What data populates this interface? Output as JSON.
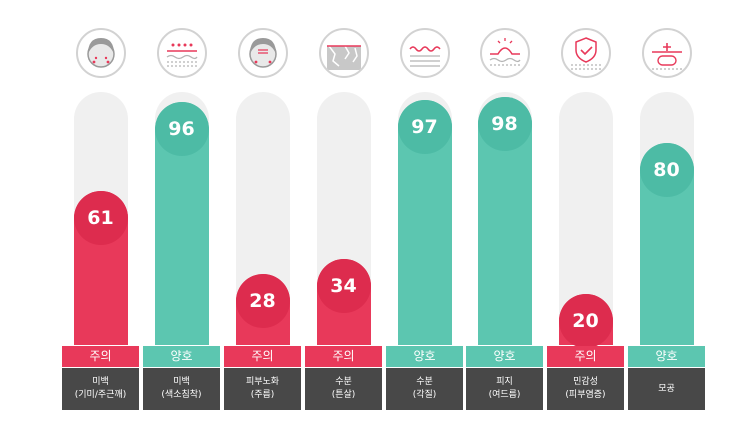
{
  "chart_data": {
    "type": "bar",
    "ylim": [
      0,
      100
    ],
    "colors": {
      "caution": "#e8395a",
      "good": "#5cc6b0",
      "track": "#f0f0f0",
      "label_bg": "#484848"
    },
    "bars": [
      {
        "value": 61,
        "status": "주의",
        "kind": "caution",
        "label1": "미백",
        "label2": "(기미/주근깨)",
        "icon": "face-spots-icon"
      },
      {
        "value": 96,
        "status": "양호",
        "kind": "good",
        "label1": "미백",
        "label2": "(색소침착)",
        "icon": "skin-pigment-icon"
      },
      {
        "value": 28,
        "status": "주의",
        "kind": "caution",
        "label1": "피부노화",
        "label2": "(주름)",
        "icon": "face-wrinkle-icon"
      },
      {
        "value": 34,
        "status": "주의",
        "kind": "caution",
        "label1": "수분",
        "label2": "(튼살)",
        "icon": "cracked-skin-icon"
      },
      {
        "value": 97,
        "status": "양호",
        "kind": "good",
        "label1": "수분",
        "label2": "(각질)",
        "icon": "skin-wave-icon"
      },
      {
        "value": 98,
        "status": "양호",
        "kind": "good",
        "label1": "피지",
        "label2": "(여드름)",
        "icon": "sebum-icon"
      },
      {
        "value": 20,
        "status": "주의",
        "kind": "caution",
        "label1": "민감성",
        "label2": "(피부염증)",
        "icon": "shield-check-icon"
      },
      {
        "value": 80,
        "status": "양호",
        "kind": "good",
        "label1": "모공",
        "label2": "",
        "icon": "pore-icon"
      }
    ]
  }
}
